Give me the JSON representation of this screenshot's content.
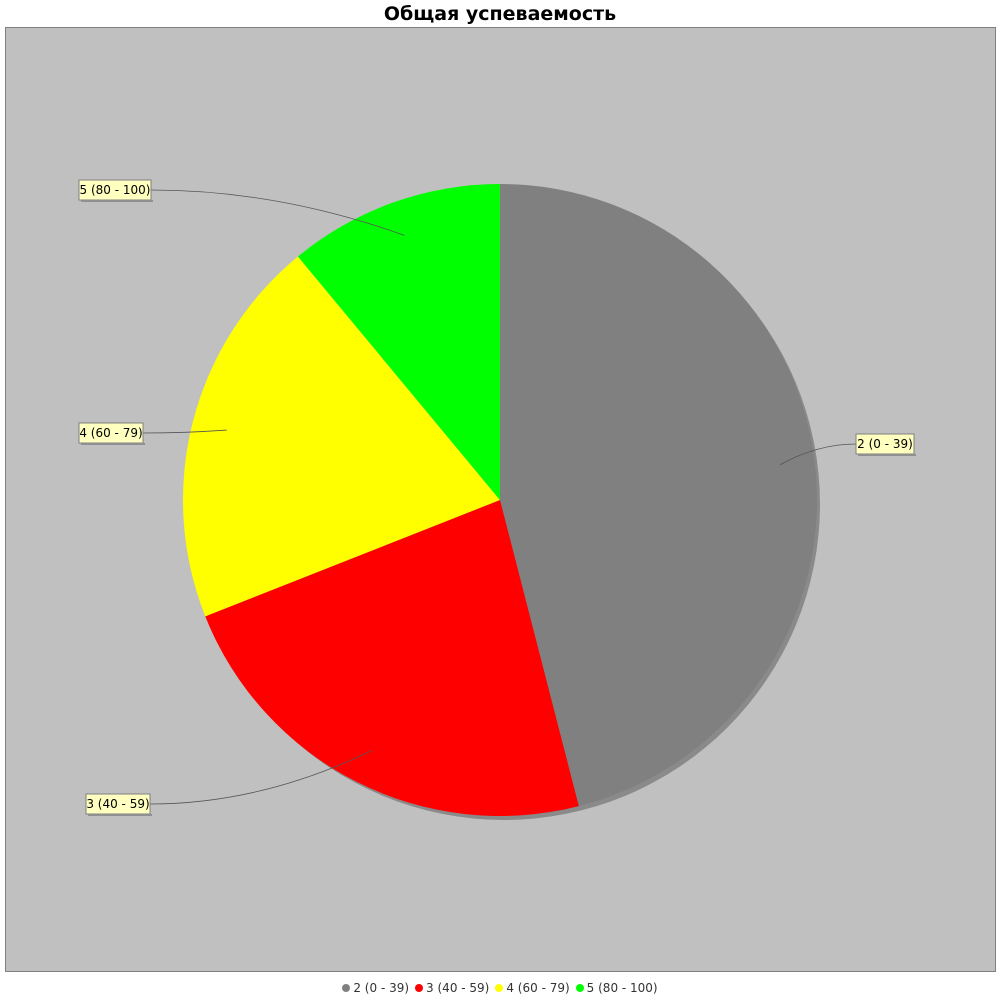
{
  "chart_data": {
    "type": "pie",
    "title": "Общая успеваемость",
    "slices": [
      {
        "label": "2 (0 - 39)",
        "value": 46,
        "color": "#808080"
      },
      {
        "label": "3 (40 - 59)",
        "value": 23,
        "color": "#ff0000"
      },
      {
        "label": "4 (60 - 79)",
        "value": 20,
        "color": "#ffff00"
      },
      {
        "label": "5 (80 - 100)",
        "value": 11,
        "color": "#00ff00"
      }
    ],
    "legend_position": "bottom",
    "plot_background": "#c0c0c0",
    "label_background": "#ffffc0"
  }
}
